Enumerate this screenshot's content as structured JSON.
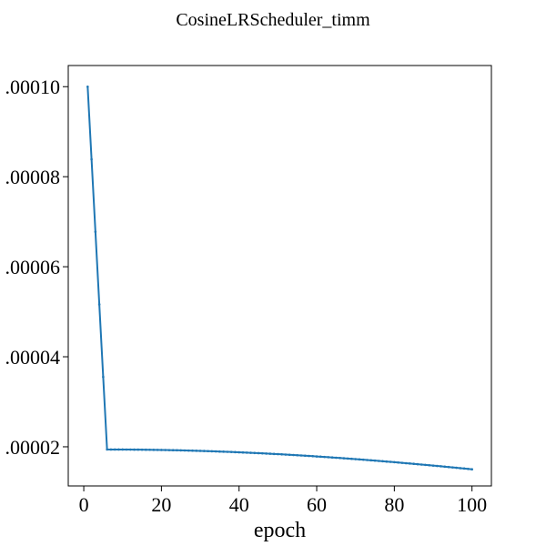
{
  "chart_data": {
    "type": "line",
    "title": "CosineLRScheduler_timm",
    "xlabel": "epoch",
    "ylabel": "",
    "xlim": [
      -4,
      105
    ],
    "ylim": [
      1.13e-05,
      0.0001047
    ],
    "grid": false,
    "legend": false,
    "color": "#1f77b4",
    "xticks": [
      0,
      20,
      40,
      60,
      80,
      100
    ],
    "yticks": [
      2e-05,
      4e-05,
      6e-05,
      8e-05,
      0.0001
    ],
    "ytick_labels": [
      ".00002",
      ".00004",
      ".00006",
      ".00008",
      ".00010"
    ],
    "series": [
      {
        "values_rule": "warmup epochs 1-6 then cosine decay",
        "x": [
          1,
          2,
          3,
          4,
          5,
          6,
          10,
          20,
          30,
          40,
          50,
          60,
          70,
          80,
          90,
          100
        ],
        "y": [
          0.0001,
          8.38e-05,
          6.76e-05,
          5.14e-05,
          3.52e-05,
          1.94e-05,
          1.94e-05,
          1.93e-05,
          1.91e-05,
          1.87e-05,
          1.83e-05,
          1.78e-05,
          1.72e-05,
          1.65e-05,
          1.58e-05,
          1.5e-05
        ]
      }
    ]
  }
}
